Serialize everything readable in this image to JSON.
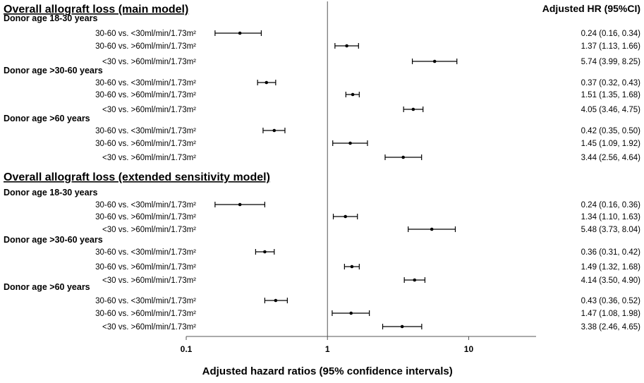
{
  "chart_data": {
    "type": "forest",
    "xscale": "log",
    "xlim": [
      0.1,
      30
    ],
    "xticks": [
      0.1,
      1,
      10
    ],
    "xtick_labels": [
      "0.1",
      "1",
      "10"
    ],
    "reference_line": 1,
    "xlabel": "Adjusted hazard ratios (95% confidence intervals)",
    "hr_column_header": "Adjusted HR (95%CI)",
    "sections": [
      {
        "title": "Overall allograft loss (main model)",
        "groups": [
          {
            "label": "Donor age 18-30 years",
            "rows": [
              {
                "label": "30-60 vs. <30ml/min/1.73m²",
                "hr": 0.24,
                "lo": 0.16,
                "hi": 0.34,
                "text": "0.24 (0.16, 0.34)"
              },
              {
                "label": "30-60 vs. >60ml/min/1.73m²",
                "hr": 1.37,
                "lo": 1.13,
                "hi": 1.66,
                "text": "1.37 (1.13, 1.66)"
              },
              {
                "label": "<30 vs. >60ml/min/1.73m²",
                "hr": 5.74,
                "lo": 3.99,
                "hi": 8.25,
                "text": "5.74 (3.99, 8.25)"
              }
            ]
          },
          {
            "label": "Donor age >30-60 years",
            "rows": [
              {
                "label": "30-60 vs. <30ml/min/1.73m²",
                "hr": 0.37,
                "lo": 0.32,
                "hi": 0.43,
                "text": "0.37 (0.32, 0.43)"
              },
              {
                "label": "30-60 vs. >60ml/min/1.73m²",
                "hr": 1.51,
                "lo": 1.35,
                "hi": 1.68,
                "text": "1.51 (1.35, 1.68)"
              },
              {
                "label": "<30 vs. >60ml/min/1.73m²",
                "hr": 4.05,
                "lo": 3.46,
                "hi": 4.75,
                "text": "4.05 (3.46, 4.75)"
              }
            ]
          },
          {
            "label": "Donor age >60 years",
            "rows": [
              {
                "label": "30-60 vs. <30ml/min/1.73m²",
                "hr": 0.42,
                "lo": 0.35,
                "hi": 0.5,
                "text": "0.42 (0.35, 0.50)"
              },
              {
                "label": "30-60 vs. >60ml/min/1.73m²",
                "hr": 1.45,
                "lo": 1.09,
                "hi": 1.92,
                "text": "1.45 (1.09, 1.92)"
              },
              {
                "label": "<30 vs. >60ml/min/1.73m²",
                "hr": 3.44,
                "lo": 2.56,
                "hi": 4.64,
                "text": "3.44 (2.56, 4.64)"
              }
            ]
          }
        ]
      },
      {
        "title": "Overall allograft loss (extended sensitivity model)",
        "groups": [
          {
            "label": "Donor age 18-30 years",
            "rows": [
              {
                "label": "30-60 vs. <30ml/min/1.73m²",
                "hr": 0.24,
                "lo": 0.16,
                "hi": 0.36,
                "text": "0.24 (0.16, 0.36)"
              },
              {
                "label": "30-60 vs. >60ml/min/1.73m²",
                "hr": 1.34,
                "lo": 1.1,
                "hi": 1.63,
                "text": "1.34 (1.10, 1.63)"
              },
              {
                "label": "<30 vs. >60ml/min/1.73m²",
                "hr": 5.48,
                "lo": 3.73,
                "hi": 8.04,
                "text": "5.48 (3.73, 8.04)"
              }
            ]
          },
          {
            "label": "Donor age >30-60 years",
            "rows": [
              {
                "label": "30-60 vs. <30ml/min/1.73m²",
                "hr": 0.36,
                "lo": 0.31,
                "hi": 0.42,
                "text": "0.36 (0.31, 0.42)"
              },
              {
                "label": "30-60 vs. >60ml/min/1.73m²",
                "hr": 1.49,
                "lo": 1.32,
                "hi": 1.68,
                "text": "1.49 (1.32, 1.68)"
              },
              {
                "label": "<30 vs. >60ml/min/1.73m²",
                "hr": 4.14,
                "lo": 3.5,
                "hi": 4.9,
                "text": "4.14 (3.50, 4.90)"
              }
            ]
          },
          {
            "label": "Donor age >60 years",
            "rows": [
              {
                "label": "30-60 vs. <30ml/min/1.73m²",
                "hr": 0.43,
                "lo": 0.36,
                "hi": 0.52,
                "text": "0.43 (0.36, 0.52)"
              },
              {
                "label": "30-60 vs. >60ml/min/1.73m²",
                "hr": 1.47,
                "lo": 1.08,
                "hi": 1.98,
                "text": "1.47 (1.08, 1.98)"
              },
              {
                "label": "<30 vs. >60ml/min/1.73m²",
                "hr": 3.38,
                "lo": 2.46,
                "hi": 4.65,
                "text": "3.38 (2.46, 4.65)"
              }
            ]
          }
        ]
      }
    ]
  }
}
